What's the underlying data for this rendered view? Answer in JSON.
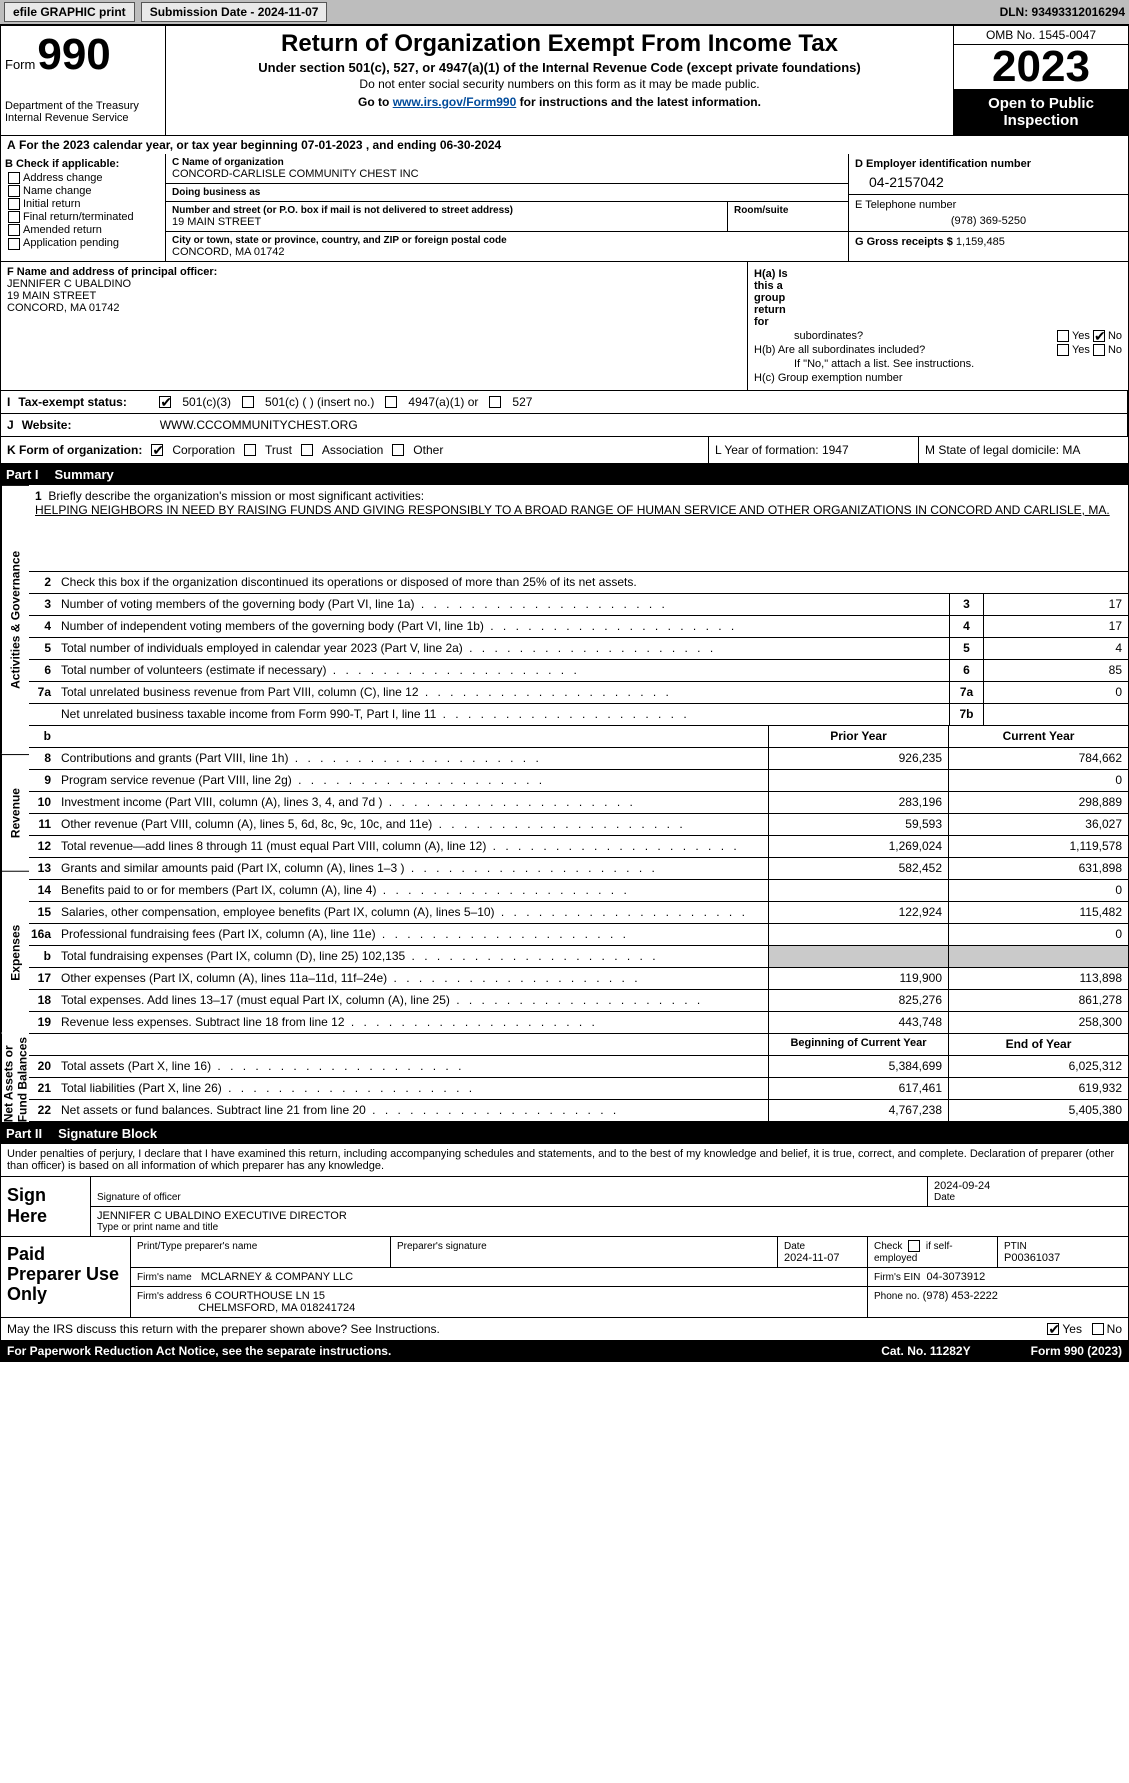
{
  "topbar": {
    "efile": "efile GRAPHIC print",
    "submission": "Submission Date - 2024-11-07",
    "dln": "DLN: 93493312016294"
  },
  "header": {
    "form_word": "Form",
    "form_num": "990",
    "title": "Return of Organization Exempt From Income Tax",
    "sub": "Under section 501(c), 527, or 4947(a)(1) of the Internal Revenue Code (except private foundations)",
    "note": "Do not enter social security numbers on this form as it may be made public.",
    "goto_pre": "Go to ",
    "goto_url": "www.irs.gov/Form990",
    "goto_post": " for instructions and the latest information.",
    "dept": "Department of the Treasury Internal Revenue Service",
    "omb": "OMB No. 1545-0047",
    "year": "2023",
    "pub": "Open to Public Inspection"
  },
  "rowA": {
    "text": "For the 2023 calendar year, or tax year beginning 07-01-2023   , and ending 06-30-2024"
  },
  "colB": {
    "hdr": "B Check if applicable:",
    "items": [
      "Address change",
      "Name change",
      "Initial return",
      "Final return/terminated",
      "Amended return",
      "Application pending"
    ]
  },
  "colC": {
    "name_lbl": "C Name of organization",
    "name": "CONCORD-CARLISLE COMMUNITY CHEST INC",
    "dba_lbl": "Doing business as",
    "dba": "",
    "street_lbl": "Number and street (or P.O. box if mail is not delivered to street address)",
    "street": "19 MAIN STREET",
    "room_lbl": "Room/suite",
    "room": "",
    "city_lbl": "City or town, state or province, country, and ZIP or foreign postal code",
    "city": "CONCORD, MA  01742"
  },
  "colD": {
    "ein_lbl": "D Employer identification number",
    "ein": "04-2157042",
    "tel_lbl": "E Telephone number",
    "tel": "(978) 369-5250",
    "gross_lbl": "G Gross receipts $",
    "gross": "1,159,485"
  },
  "rowF": {
    "lbl": "F  Name and address of principal officer:",
    "name": "JENNIFER C UBALDINO",
    "addr1": "19 MAIN STREET",
    "addr2": "CONCORD, MA  01742"
  },
  "rowH": {
    "ha": "H(a)  Is this a group return for",
    "ha2": "subordinates?",
    "hb": "H(b)  Are all subordinates included?",
    "hb_note": "If \"No,\" attach a list. See instructions.",
    "hc": "H(c)  Group exemption number",
    "yes": "Yes",
    "no": "No"
  },
  "rowI": {
    "lbl": "Tax-exempt status:",
    "o1": "501(c)(3)",
    "o2": "501(c) (  ) (insert no.)",
    "o3": "4947(a)(1) or",
    "o4": "527"
  },
  "rowJ": {
    "lbl": "Website:",
    "url": "WWW.CCCOMMUNITYCHEST.ORG"
  },
  "rowK": {
    "lbl": "K Form of organization:",
    "corp": "Corporation",
    "trust": "Trust",
    "assoc": "Association",
    "other": "Other"
  },
  "rowL": {
    "text": "L Year of formation: 1947"
  },
  "rowM": {
    "text": "M State of legal domicile: MA"
  },
  "partI": {
    "num": "Part I",
    "title": "Summary"
  },
  "sideLabels": [
    "Activities & Governance",
    "Revenue",
    "Expenses",
    "Net Assets or Fund Balances"
  ],
  "mission": {
    "q": "Briefly describe the organization's mission or most significant activities:",
    "text": "HELPING NEIGHBORS IN NEED BY RAISING FUNDS AND GIVING RESPONSIBLY TO A BROAD RANGE OF HUMAN SERVICE AND OTHER ORGANIZATIONS IN CONCORD AND CARLISLE, MA."
  },
  "line2": "Check this box      if the organization discontinued its operations or disposed of more than 25% of its net assets.",
  "lines_ag": [
    {
      "n": "3",
      "t": "Number of voting members of the governing body (Part VI, line 1a)",
      "c": "3",
      "v": "17"
    },
    {
      "n": "4",
      "t": "Number of independent voting members of the governing body (Part VI, line 1b)",
      "c": "4",
      "v": "17"
    },
    {
      "n": "5",
      "t": "Total number of individuals employed in calendar year 2023 (Part V, line 2a)",
      "c": "5",
      "v": "4"
    },
    {
      "n": "6",
      "t": "Total number of volunteers (estimate if necessary)",
      "c": "6",
      "v": "85"
    },
    {
      "n": "7a",
      "t": "Total unrelated business revenue from Part VIII, column (C), line 12",
      "c": "7a",
      "v": "0"
    },
    {
      "n": "",
      "t": "Net unrelated business taxable income from Form 990-T, Part I, line 11",
      "c": "7b",
      "v": ""
    }
  ],
  "lineb": "b",
  "py_hdr": "Prior Year",
  "cy_hdr": "Current Year",
  "lines_rev": [
    {
      "n": "8",
      "t": "Contributions and grants (Part VIII, line 1h)",
      "py": "926,235",
      "cy": "784,662"
    },
    {
      "n": "9",
      "t": "Program service revenue (Part VIII, line 2g)",
      "py": "",
      "cy": "0"
    },
    {
      "n": "10",
      "t": "Investment income (Part VIII, column (A), lines 3, 4, and 7d )",
      "py": "283,196",
      "cy": "298,889"
    },
    {
      "n": "11",
      "t": "Other revenue (Part VIII, column (A), lines 5, 6d, 8c, 9c, 10c, and 11e)",
      "py": "59,593",
      "cy": "36,027"
    },
    {
      "n": "12",
      "t": "Total revenue—add lines 8 through 11 (must equal Part VIII, column (A), line 12)",
      "py": "1,269,024",
      "cy": "1,119,578"
    }
  ],
  "lines_exp": [
    {
      "n": "13",
      "t": "Grants and similar amounts paid (Part IX, column (A), lines 1–3 )",
      "py": "582,452",
      "cy": "631,898"
    },
    {
      "n": "14",
      "t": "Benefits paid to or for members (Part IX, column (A), line 4)",
      "py": "",
      "cy": "0"
    },
    {
      "n": "15",
      "t": "Salaries, other compensation, employee benefits (Part IX, column (A), lines 5–10)",
      "py": "122,924",
      "cy": "115,482"
    },
    {
      "n": "16a",
      "t": "Professional fundraising fees (Part IX, column (A), line 11e)",
      "py": "",
      "cy": "0"
    },
    {
      "n": "b",
      "t": "Total fundraising expenses (Part IX, column (D), line 25) 102,135",
      "py": "SHADE",
      "cy": "SHADE"
    },
    {
      "n": "17",
      "t": "Other expenses (Part IX, column (A), lines 11a–11d, 11f–24e)",
      "py": "119,900",
      "cy": "113,898"
    },
    {
      "n": "18",
      "t": "Total expenses. Add lines 13–17 (must equal Part IX, column (A), line 25)",
      "py": "825,276",
      "cy": "861,278"
    },
    {
      "n": "19",
      "t": "Revenue less expenses. Subtract line 18 from line 12",
      "py": "443,748",
      "cy": "258,300"
    }
  ],
  "na_hdr_py": "Beginning of Current Year",
  "na_hdr_cy": "End of Year",
  "lines_na": [
    {
      "n": "20",
      "t": "Total assets (Part X, line 16)",
      "py": "5,384,699",
      "cy": "6,025,312"
    },
    {
      "n": "21",
      "t": "Total liabilities (Part X, line 26)",
      "py": "617,461",
      "cy": "619,932"
    },
    {
      "n": "22",
      "t": "Net assets or fund balances. Subtract line 21 from line 20",
      "py": "4,767,238",
      "cy": "5,405,380"
    }
  ],
  "partII": {
    "num": "Part II",
    "title": "Signature Block"
  },
  "sig_intro": "Under penalties of perjury, I declare that I have examined this return, including accompanying schedules and statements, and to the best of my knowledge and belief, it is true, correct, and complete. Declaration of preparer (other than officer) is based on all information of which preparer has any knowledge.",
  "sign": {
    "lbl": "Sign Here",
    "sig_lbl": "Signature of officer",
    "date_lbl": "Date",
    "date": "2024-09-24",
    "name": "JENNIFER C UBALDINO  EXECUTIVE DIRECTOR",
    "name_lbl": "Type or print name and title"
  },
  "paid": {
    "lbl": "Paid Preparer Use Only",
    "c1": "Print/Type preparer's name",
    "c2": "Preparer's signature",
    "c3": "Date",
    "c3v": "2024-11-07",
    "c4": "Check      if self-employed",
    "c5": "PTIN",
    "c5v": "P00361037",
    "firm_lbl": "Firm's name",
    "firm": "MCLARNEY & COMPANY LLC",
    "fein_lbl": "Firm's EIN",
    "fein": "04-3073912",
    "faddr_lbl": "Firm's address",
    "faddr1": "6 COURTHOUSE LN 15",
    "faddr2": "CHELMSFORD, MA  018241724",
    "phone_lbl": "Phone no.",
    "phone": "(978) 453-2222"
  },
  "discuss": "May the IRS discuss this return with the preparer shown above? See Instructions.",
  "footer": {
    "pra": "For Paperwork Reduction Act Notice, see the separate instructions.",
    "cat": "Cat. No. 11282Y",
    "form": "Form 990 (2023)"
  },
  "colors": {
    "topbar": "#bdbdbd",
    "shade": "#cacaca",
    "link": "#004b9b"
  }
}
